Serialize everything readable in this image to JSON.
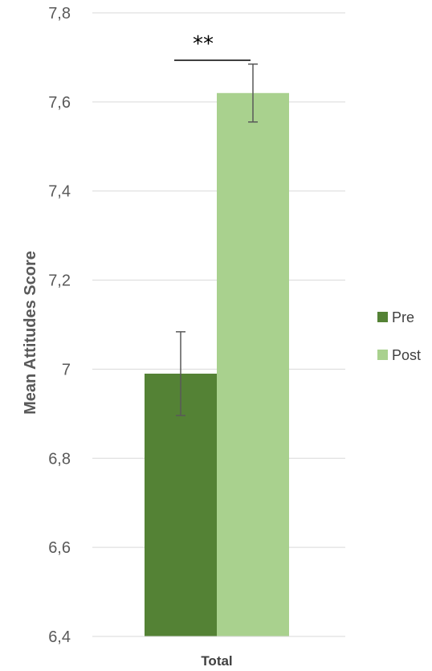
{
  "chart_data": {
    "type": "bar",
    "categories": [
      "Total"
    ],
    "series": [
      {
        "name": "Pre",
        "values": [
          6.99
        ],
        "error": [
          0.094
        ],
        "color": "#548235"
      },
      {
        "name": "Post",
        "values": [
          7.62
        ],
        "error": [
          0.065
        ],
        "color": "#A9D18E"
      }
    ],
    "ylabel": "Mean Attitudes Score",
    "xlabel": "",
    "ylim": [
      6.4,
      7.8
    ],
    "yticks": [
      "7,8",
      "7,6",
      "7,4",
      "7,2",
      "7",
      "6,8",
      "6,6",
      "6,4"
    ],
    "grid": true,
    "legend_position": "right",
    "annotation": "**",
    "gridline_color": "#d9d9d9",
    "errorbar_color": "#595959"
  }
}
